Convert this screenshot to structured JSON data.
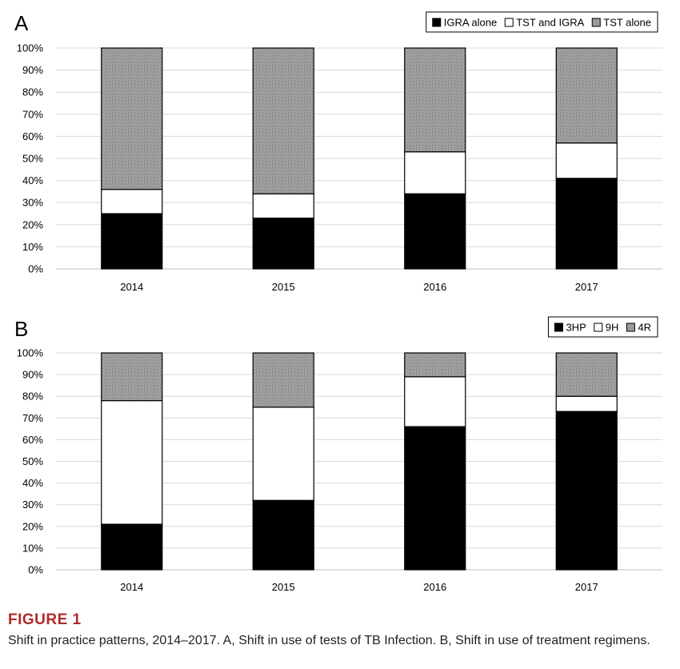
{
  "figure": {
    "label": "FIGURE 1",
    "caption": "Shift in practice patterns, 2014–2017. A, Shift in use of tests of TB Infection. B, Shift in use of treatment regimens."
  },
  "colors": {
    "black": "#000000",
    "white": "#ffffff",
    "gray_pattern": "#9a9a9a"
  },
  "chart_data": [
    {
      "type": "bar",
      "stacked": true,
      "panel_label": "A",
      "categories": [
        "2014",
        "2015",
        "2016",
        "2017"
      ],
      "ylim": [
        0,
        100
      ],
      "y_ticks": [
        "0%",
        "10%",
        "20%",
        "30%",
        "40%",
        "50%",
        "60%",
        "70%",
        "80%",
        "90%",
        "100%"
      ],
      "grid": true,
      "legend_position": "top-right",
      "series": [
        {
          "name": "IGRA alone",
          "fill": "black",
          "values": [
            25,
            23,
            34,
            41
          ]
        },
        {
          "name": "TST and IGRA",
          "fill": "white",
          "values": [
            11,
            11,
            19,
            16
          ]
        },
        {
          "name": "TST alone",
          "fill": "gray",
          "values": [
            64,
            66,
            47,
            43
          ]
        }
      ]
    },
    {
      "type": "bar",
      "stacked": true,
      "panel_label": "B",
      "categories": [
        "2014",
        "2015",
        "2016",
        "2017"
      ],
      "ylim": [
        0,
        100
      ],
      "y_ticks": [
        "0%",
        "10%",
        "20%",
        "30%",
        "40%",
        "50%",
        "60%",
        "70%",
        "80%",
        "90%",
        "100%"
      ],
      "grid": true,
      "legend_position": "top-right",
      "series": [
        {
          "name": "3HP",
          "fill": "black",
          "values": [
            21,
            32,
            66,
            73
          ]
        },
        {
          "name": "9H",
          "fill": "white",
          "values": [
            57,
            43,
            23,
            7
          ]
        },
        {
          "name": "4R",
          "fill": "gray",
          "values": [
            22,
            25,
            11,
            20
          ]
        }
      ]
    }
  ]
}
